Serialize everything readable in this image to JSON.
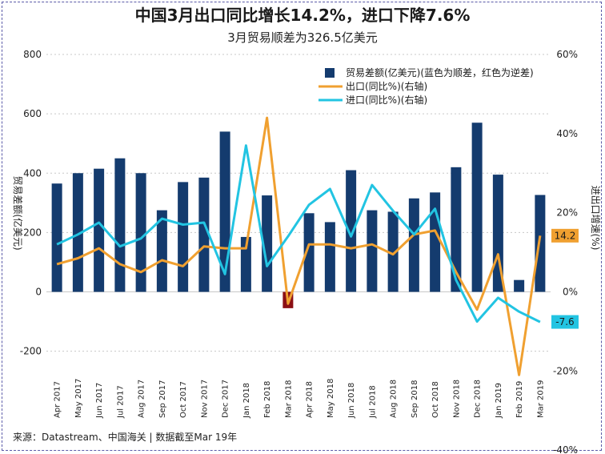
{
  "chart_data": {
    "type": "bar+line",
    "title": "中国3月出口同比增长14.2%，进口下降7.6%",
    "subtitle": "3月贸易顺差为326.5亿美元",
    "ylabel": "贸易差额(亿美元)",
    "y2label": "进出口增速(%)",
    "ylim": [
      -300,
      800
    ],
    "yticks": [
      -200,
      0,
      200,
      400,
      600,
      800
    ],
    "y2lim": [
      -40,
      60
    ],
    "y2ticks": [
      -40,
      -20,
      0,
      20,
      40,
      60
    ],
    "y2tick_labels": [
      "-40%",
      "-20%",
      "0%",
      "20%",
      "40%",
      "60%"
    ],
    "categories": [
      "Apr 2017",
      "May 2017",
      "Jun 2017",
      "Jul 2017",
      "Aug 2017",
      "Sep 2017",
      "Oct 2017",
      "Nov 2017",
      "Dec 2017",
      "Jan 2018",
      "Feb 2018",
      "Mar 2018",
      "Apr 2018",
      "May 2018",
      "Jun 2018",
      "Jul 2018",
      "Aug 2018",
      "Sep 2018",
      "Oct 2018",
      "Nov 2018",
      "Dec 2018",
      "Jan 2019",
      "Feb 2019",
      "Mar 2019"
    ],
    "series": [
      {
        "name": "贸易差额(亿美元)(蓝色为顺差，红色为逆差)",
        "type": "bar",
        "axis": "left",
        "color": "#143b6e",
        "negative_color": "#8b0f14",
        "values": [
          365,
          400,
          415,
          450,
          400,
          275,
          370,
          385,
          540,
          185,
          325,
          -55,
          265,
          235,
          410,
          275,
          270,
          315,
          335,
          420,
          570,
          395,
          40,
          326.5
        ]
      },
      {
        "name": "出口(同比%)(右轴)",
        "type": "line",
        "axis": "right",
        "color": "#f0a030",
        "values": [
          7,
          8.5,
          11,
          7,
          5,
          8,
          6.5,
          11.5,
          11,
          11,
          44,
          -3,
          12,
          12,
          11,
          12,
          9.5,
          14.5,
          15.5,
          5,
          -4.5,
          9.5,
          -21,
          14.2
        ]
      },
      {
        "name": "进口(同比%)(右轴)",
        "type": "line",
        "axis": "right",
        "color": "#22c4e2",
        "values": [
          12,
          14.5,
          17.5,
          11.5,
          13.5,
          18.5,
          17,
          17.5,
          4.5,
          37,
          6.5,
          14,
          22,
          26,
          14,
          27,
          20.5,
          14.5,
          21,
          3,
          -7.5,
          -1.5,
          -5,
          -7.6
        ]
      }
    ],
    "callouts": [
      {
        "text": "14.2",
        "series": "出口(同比%)(右轴)",
        "color": "#f0a030"
      },
      {
        "text": "-7.6",
        "series": "进口(同比%)(右轴)",
        "color": "#22c4e2"
      }
    ],
    "legend_position": "top-right",
    "grid": "horizontal dotted"
  },
  "source_note": "来源：Datastream、中国海关 | 数据截至Mar 19年"
}
